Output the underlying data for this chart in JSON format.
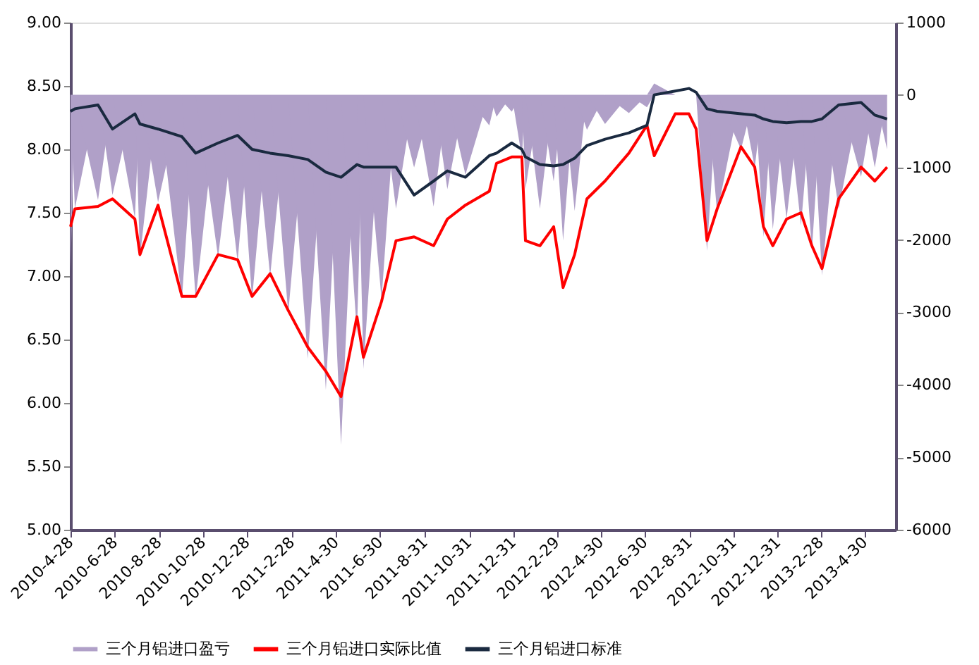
{
  "chart_data": {
    "type": "line",
    "x": [
      "2010-04-28",
      "2010-05-04",
      "2010-06-05",
      "2010-06-25",
      "2010-07-26",
      "2010-08-02",
      "2010-08-27",
      "2010-09-29",
      "2010-10-18",
      "2010-11-18",
      "2010-12-15",
      "2011-01-04",
      "2011-01-29",
      "2011-02-23",
      "2011-03-22",
      "2011-04-16",
      "2011-05-07",
      "2011-05-29",
      "2011-06-07",
      "2011-07-02",
      "2011-07-22",
      "2011-08-16",
      "2011-09-12",
      "2011-10-01",
      "2011-10-26",
      "2011-11-28",
      "2011-12-08",
      "2011-12-29",
      "2012-01-12",
      "2012-01-17",
      "2012-02-06",
      "2012-02-25",
      "2012-03-09",
      "2012-03-25",
      "2012-04-11",
      "2012-05-06",
      "2012-06-08",
      "2012-07-03",
      "2012-07-13",
      "2012-08-11",
      "2012-08-30",
      "2012-09-09",
      "2012-09-24",
      "2012-10-08",
      "2012-11-10",
      "2012-11-29",
      "2012-12-11",
      "2012-12-24",
      "2013-01-12",
      "2013-02-01",
      "2013-02-16",
      "2013-03-02",
      "2013-03-25",
      "2013-04-25",
      "2013-05-14",
      "2013-05-31"
    ],
    "series": [
      {
        "name": "三个月铝进口盈亏",
        "type": "area",
        "axis": "y2",
        "color": "#b0a0c8",
        "values": [
          -2440,
          -1570,
          -1450,
          -1380,
          -1700,
          -2240,
          -1480,
          -2820,
          -2820,
          -2240,
          -2300,
          -2820,
          -2500,
          -3010,
          -3640,
          -4070,
          -4830,
          -3300,
          -3780,
          -2820,
          -1570,
          -1000,
          -1540,
          -1300,
          -1100,
          -420,
          -300,
          -230,
          -860,
          -1300,
          -1570,
          -1190,
          -2010,
          -1600,
          -480,
          -400,
          -250,
          -170,
          160,
          0,
          0,
          0,
          -2150,
          -1630,
          -750,
          -1000,
          -1960,
          -1850,
          -1710,
          -1800,
          -2150,
          -2490,
          -1570,
          -1130,
          -1000,
          -750
        ]
      },
      {
        "name": "三个月铝进口实际比值",
        "color": "#ff0000",
        "values": [
          7.39,
          7.53,
          7.55,
          7.61,
          7.45,
          7.17,
          7.56,
          6.84,
          6.84,
          7.17,
          7.13,
          6.84,
          7.02,
          6.73,
          6.44,
          6.25,
          6.05,
          6.68,
          6.36,
          6.8,
          7.28,
          7.31,
          7.24,
          7.45,
          7.56,
          7.67,
          7.89,
          7.94,
          7.94,
          7.28,
          7.24,
          7.39,
          6.91,
          7.17,
          7.61,
          7.75,
          7.97,
          8.19,
          7.95,
          8.28,
          8.28,
          8.16,
          7.28,
          7.53,
          8.02,
          7.86,
          7.39,
          7.24,
          7.45,
          7.5,
          7.24,
          7.06,
          7.61,
          7.86,
          7.75,
          7.86
        ]
      },
      {
        "name": "三个月铝进口标准",
        "color": "#1a2a40",
        "values": [
          8.3,
          8.32,
          8.35,
          8.16,
          8.28,
          8.2,
          8.16,
          8.1,
          7.97,
          8.05,
          8.11,
          8.0,
          7.97,
          7.95,
          7.92,
          7.82,
          7.78,
          7.88,
          7.86,
          7.86,
          7.86,
          7.64,
          7.75,
          7.83,
          7.78,
          7.95,
          7.97,
          8.05,
          8.0,
          7.94,
          7.88,
          7.87,
          7.88,
          7.93,
          8.03,
          8.08,
          8.13,
          8.19,
          8.43,
          8.46,
          8.48,
          8.45,
          8.32,
          8.3,
          8.28,
          8.27,
          8.24,
          8.22,
          8.21,
          8.22,
          8.22,
          8.24,
          8.35,
          8.37,
          8.27,
          8.24
        ]
      }
    ],
    "xlim": [
      "2010-04-28",
      "2013-06-12"
    ],
    "xticks": [
      {
        "value": "2010-04-28",
        "label": "2010-4-28"
      },
      {
        "value": "2010-06-28",
        "label": "2010-6-28"
      },
      {
        "value": "2010-08-28",
        "label": "2010-8-28"
      },
      {
        "value": "2010-10-28",
        "label": "2010-10-28"
      },
      {
        "value": "2010-12-28",
        "label": "2010-12-28"
      },
      {
        "value": "2011-02-28",
        "label": "2011-2-28"
      },
      {
        "value": "2011-04-30",
        "label": "2011-4-30"
      },
      {
        "value": "2011-06-30",
        "label": "2011-6-30"
      },
      {
        "value": "2011-08-31",
        "label": "2011-8-31"
      },
      {
        "value": "2011-10-31",
        "label": "2011-10-31"
      },
      {
        "value": "2011-12-31",
        "label": "2011-12-31"
      },
      {
        "value": "2012-02-29",
        "label": "2012-2-29"
      },
      {
        "value": "2012-04-30",
        "label": "2012-4-30"
      },
      {
        "value": "2012-06-30",
        "label": "2012-6-30"
      },
      {
        "value": "2012-08-31",
        "label": "2012-8-31"
      },
      {
        "value": "2012-10-31",
        "label": "2012-10-31"
      },
      {
        "value": "2012-12-31",
        "label": "2012-12-31"
      },
      {
        "value": "2013-02-28",
        "label": "2013-2-28"
      },
      {
        "value": "2013-04-30",
        "label": "2013-4-30"
      }
    ],
    "ylim": [
      5,
      9
    ],
    "yticks": [
      {
        "value": 5,
        "label": "5.00"
      },
      {
        "value": 5.5,
        "label": "5.50"
      },
      {
        "value": 6,
        "label": "6.00"
      },
      {
        "value": 6.5,
        "label": "6.50"
      },
      {
        "value": 7,
        "label": "7.00"
      },
      {
        "value": 7.5,
        "label": "7.50"
      },
      {
        "value": 8,
        "label": "8.00"
      },
      {
        "value": 8.5,
        "label": "8.50"
      },
      {
        "value": 9,
        "label": "9.00"
      }
    ],
    "y2lim": [
      -6000,
      1000
    ],
    "y2ticks": [
      -6000,
      -5000,
      -4000,
      -3000,
      -2000,
      -1000,
      0,
      1000
    ],
    "grid": false,
    "legend": "bottom",
    "marker": "none",
    "line_style": "solid"
  }
}
